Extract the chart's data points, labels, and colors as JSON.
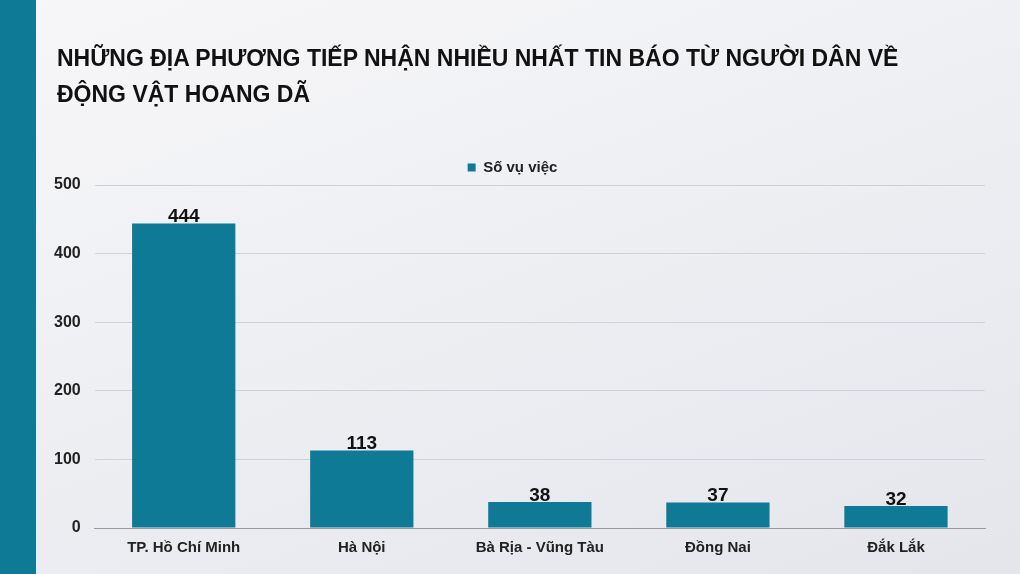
{
  "chart_data": {
    "type": "bar",
    "title": "NHỮNG ĐỊA PHƯƠNG TIẾP NHẬN NHIỀU NHẤT TIN BÁO TỪ NGƯỜI DÂN VỀ ĐỘNG VẬT HOANG DÃ",
    "categories": [
      "TP. Hồ Chí Minh",
      "Hà Nội",
      "Bà Rịa - Vũng Tàu",
      "Đồng Nai",
      "Đắk Lắk"
    ],
    "series": [
      {
        "name": "Số vụ việc",
        "color": "#0e7a96",
        "values": [
          444,
          113,
          38,
          37,
          32
        ]
      }
    ],
    "ylim": [
      0,
      500
    ],
    "yticks": [
      0,
      100,
      200,
      300,
      400,
      500
    ],
    "grid": "y",
    "legend": "top",
    "data_labels": true
  }
}
